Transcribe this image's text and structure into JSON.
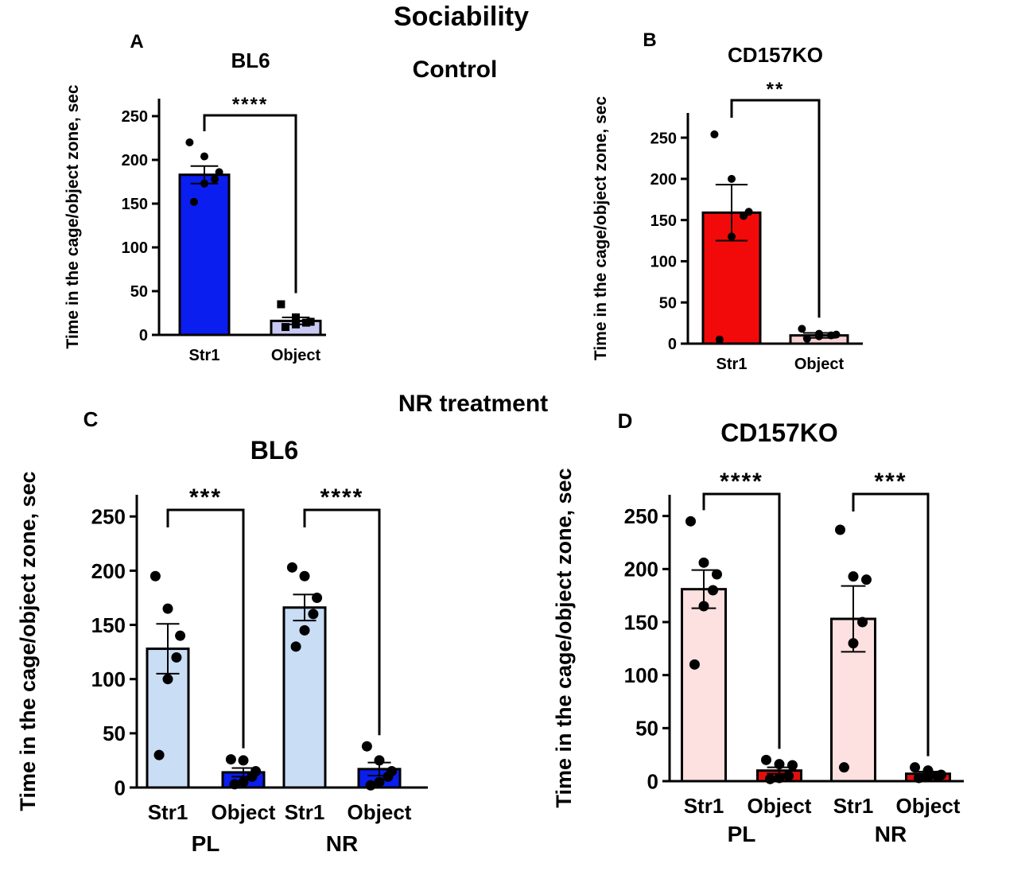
{
  "page": {
    "title": "Sociability",
    "section_control": "Control",
    "section_nr": "NR treatment"
  },
  "colors": {
    "bl6_bar": "#0a1ef0",
    "bl6_object_light": "#c8c8f2",
    "bl6_light": "#c9ddf5",
    "ko_red": "#f20a0a",
    "ko_object_light": "#f7d2d2",
    "ko_light": "#fde0e0",
    "ko_object_red": "#e01010"
  },
  "chart_data": [
    {
      "panel": "A",
      "type": "bar",
      "title": "BL6",
      "ylabel": "Time in the cage/object zone, sec",
      "ylim": [
        0,
        270
      ],
      "yticks": [
        0,
        50,
        100,
        150,
        200,
        250
      ],
      "categories": [
        "Str1",
        "Object"
      ],
      "group_labels": [],
      "values": [
        183,
        16
      ],
      "sem": [
        10,
        4
      ],
      "points": [
        [
          220,
          204,
          186,
          178,
          173,
          152
        ],
        [
          35,
          20,
          15,
          14,
          12,
          9
        ]
      ],
      "markers": [
        "circle",
        "square"
      ],
      "bar_colors": [
        "bl6_bar",
        "bl6_object_light"
      ],
      "significance": [
        {
          "from": 0,
          "to": 1,
          "label": "****"
        }
      ]
    },
    {
      "panel": "B",
      "type": "bar",
      "title": "CD157KO",
      "ylabel": "Time in the cage/object zone, sec",
      "ylim": [
        0,
        280
      ],
      "yticks": [
        0,
        50,
        100,
        150,
        200,
        250
      ],
      "categories": [
        "Str1",
        "Object"
      ],
      "group_labels": [],
      "values": [
        159,
        10
      ],
      "sem": [
        34,
        3
      ],
      "points": [
        [
          254,
          200,
          160,
          155,
          130,
          5
        ],
        [
          18,
          12,
          11,
          10,
          9,
          6
        ]
      ],
      "markers": [
        "circle",
        "circle"
      ],
      "bar_colors": [
        "ko_red",
        "ko_object_light"
      ],
      "significance": [
        {
          "from": 0,
          "to": 1,
          "label": "**"
        }
      ]
    },
    {
      "panel": "C",
      "type": "bar",
      "title": "BL6",
      "ylabel": "Time in the cage/object zone, sec",
      "ylim": [
        0,
        270
      ],
      "yticks": [
        0,
        50,
        100,
        150,
        200,
        250
      ],
      "categories": [
        "Str1",
        "Object",
        "Str1",
        "Object"
      ],
      "group_labels": [
        "PL",
        "NR"
      ],
      "values": [
        128,
        14,
        166,
        17
      ],
      "sem": [
        23,
        4,
        12,
        6
      ],
      "points": [
        [
          195,
          165,
          140,
          120,
          100,
          30
        ],
        [
          26,
          25,
          15,
          10,
          5,
          3
        ],
        [
          203,
          195,
          175,
          160,
          145,
          130
        ],
        [
          38,
          25,
          15,
          10,
          5,
          2
        ]
      ],
      "markers": [
        "circle",
        "circle",
        "circle",
        "circle"
      ],
      "bar_colors": [
        "bl6_light",
        "bl6_bar",
        "bl6_light",
        "bl6_bar"
      ],
      "significance": [
        {
          "from": 0,
          "to": 1,
          "label": "***"
        },
        {
          "from": 2,
          "to": 3,
          "label": "****"
        }
      ]
    },
    {
      "panel": "D",
      "type": "bar",
      "title": "CD157KO",
      "ylabel": "Time in the cage/object zone, sec",
      "ylim": [
        0,
        270
      ],
      "yticks": [
        0,
        50,
        100,
        150,
        200,
        250
      ],
      "categories": [
        "Str1",
        "Object",
        "Str1",
        "Object"
      ],
      "group_labels": [
        "PL",
        "NR"
      ],
      "values": [
        181,
        10,
        153,
        7
      ],
      "sem": [
        18,
        3,
        31,
        2
      ],
      "points": [
        [
          245,
          206,
          195,
          180,
          165,
          110
        ],
        [
          20,
          16,
          15,
          5,
          3,
          2
        ],
        [
          237,
          193,
          190,
          150,
          130,
          13
        ],
        [
          13,
          10,
          6,
          5,
          4,
          3
        ]
      ],
      "markers": [
        "circle",
        "circle",
        "circle",
        "circle"
      ],
      "bar_colors": [
        "ko_light",
        "ko_object_red",
        "ko_light",
        "ko_object_red"
      ],
      "significance": [
        {
          "from": 0,
          "to": 1,
          "label": "****"
        },
        {
          "from": 2,
          "to": 3,
          "label": "***"
        }
      ]
    }
  ]
}
